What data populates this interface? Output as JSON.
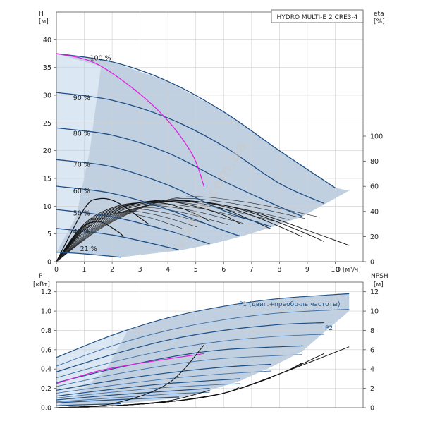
{
  "chart_data": [
    {
      "type": "line",
      "title": "HYDRO MULTI-E 2 CRE3-4",
      "watermark": "vikt21.com.ua",
      "x_axis": {
        "label": "Q [м³/ч]",
        "range": [
          0,
          11
        ],
        "ticks": [
          "0",
          "1",
          "2",
          "3",
          "4",
          "5",
          "6",
          "7",
          "8",
          "9",
          "10"
        ]
      },
      "y_left": {
        "label": "H",
        "unit": "[м]",
        "range": [
          0,
          45
        ],
        "ticks": [
          "0",
          "5",
          "10",
          "15",
          "20",
          "25",
          "30",
          "35",
          "40"
        ]
      },
      "y_right": {
        "label": "eta",
        "unit": "[%]",
        "range": [
          0,
          100
        ],
        "ticks": [
          "0",
          "20",
          "40",
          "60",
          "80",
          "100"
        ]
      },
      "colors": {
        "region_dark": "#b6c8db",
        "region_light": "#dbe7f3",
        "curve": "#1d4f86",
        "bep": "#e020e0",
        "eta": "#111111"
      },
      "speed_labels": [
        "100 %",
        "90 %",
        "80 %",
        "70 %",
        "60 %",
        "50 %",
        "40 %",
        "21 %"
      ],
      "head_curves": [
        {
          "speed": "100 %",
          "points": [
            [
              0,
              37.5
            ],
            [
              2,
              36
            ],
            [
              4,
              32.5
            ],
            [
              6,
              27
            ],
            [
              8,
              20
            ],
            [
              10,
              13.3
            ]
          ]
        },
        {
          "speed": "90 %",
          "points": [
            [
              0,
              30.5
            ],
            [
              2,
              29.1
            ],
            [
              4,
              25.9
            ],
            [
              6,
              20.8
            ],
            [
              8,
              14.1
            ],
            [
              9.6,
              10.5
            ]
          ]
        },
        {
          "speed": "80 %",
          "points": [
            [
              0,
              24.1
            ],
            [
              2,
              22.8
            ],
            [
              4,
              19.6
            ],
            [
              6,
              14.5
            ],
            [
              8,
              9.9
            ],
            [
              8.8,
              8.2
            ]
          ]
        },
        {
          "speed": "70 %",
          "points": [
            [
              0,
              18.4
            ],
            [
              2,
              17.1
            ],
            [
              4,
              13.8
            ],
            [
              6,
              9.2
            ],
            [
              7.7,
              6.3
            ]
          ]
        },
        {
          "speed": "60 %",
          "points": [
            [
              0,
              13.6
            ],
            [
              2,
              12.3
            ],
            [
              4,
              9.4
            ],
            [
              6,
              5.6
            ],
            [
              6.6,
              4.6
            ]
          ]
        },
        {
          "speed": "50 %",
          "points": [
            [
              0,
              9.4
            ],
            [
              2,
              8.1
            ],
            [
              4,
              5.6
            ],
            [
              5.5,
              3.2
            ]
          ]
        },
        {
          "speed": "40 %",
          "points": [
            [
              0,
              6.0
            ],
            [
              2,
              4.8
            ],
            [
              4,
              2.6
            ],
            [
              4.4,
              2.1
            ]
          ]
        },
        {
          "speed": "21 %",
          "points": [
            [
              0,
              1.7
            ],
            [
              1,
              1.4
            ],
            [
              2.3,
              0.8
            ]
          ]
        }
      ],
      "bep_curve": [
        [
          0,
          37.5
        ],
        [
          1.5,
          35.5
        ],
        [
          3.5,
          28
        ],
        [
          4.8,
          20
        ],
        [
          5.3,
          13.5
        ]
      ],
      "eta_curves": [
        {
          "points": [
            [
              0,
              0
            ],
            [
              1,
              25
            ],
            [
              2,
              38
            ],
            [
              3,
              45
            ],
            [
              4,
              48
            ],
            [
              5,
              48
            ],
            [
              6,
              45
            ],
            [
              7,
              40
            ],
            [
              8,
              33
            ],
            [
              9,
              25
            ],
            [
              10,
              17
            ],
            [
              10.5,
              13
            ]
          ]
        },
        {
          "points": [
            [
              0,
              0
            ],
            [
              1,
              26
            ],
            [
              2,
              39
            ],
            [
              3,
              46
            ],
            [
              4,
              48
            ],
            [
              5,
              48
            ],
            [
              6,
              45
            ],
            [
              7,
              39
            ],
            [
              8,
              31
            ],
            [
              9,
              22
            ],
            [
              9.6,
              16
            ]
          ]
        },
        {
          "points": [
            [
              0,
              0
            ],
            [
              1,
              27
            ],
            [
              2,
              40
            ],
            [
              3,
              47
            ],
            [
              4,
              49
            ],
            [
              5,
              48
            ],
            [
              6,
              44
            ],
            [
              7,
              37
            ],
            [
              8,
              28
            ],
            [
              8.8,
              20
            ]
          ]
        },
        {
          "points": [
            [
              0,
              0
            ],
            [
              1,
              28
            ],
            [
              2,
              41
            ],
            [
              3,
              47
            ],
            [
              4,
              49
            ],
            [
              5,
              47
            ],
            [
              6,
              42
            ],
            [
              7,
              33
            ],
            [
              7.7,
              26
            ]
          ]
        },
        {
          "points": [
            [
              0,
              0
            ],
            [
              1,
              29
            ],
            [
              2,
              42
            ],
            [
              3,
              47
            ],
            [
              4,
              48
            ],
            [
              5,
              44
            ],
            [
              6,
              37
            ],
            [
              6.6,
              30
            ]
          ]
        },
        {
          "points": [
            [
              0,
              0
            ],
            [
              1,
              30
            ],
            [
              2,
              43
            ],
            [
              3,
              47
            ],
            [
              4,
              46
            ],
            [
              5,
              38
            ],
            [
              5.5,
              32
            ]
          ]
        },
        {
          "points": [
            [
              0,
              0
            ],
            [
              1,
              42
            ],
            [
              1.5,
              50
            ],
            [
              2.2,
              47
            ],
            [
              3.3,
              30
            ]
          ]
        },
        {
          "points": [
            [
              0,
              0
            ],
            [
              0.8,
              25
            ],
            [
              1.5,
              32
            ],
            [
              2.2,
              24
            ],
            [
              2.4,
              20
            ]
          ]
        }
      ]
    },
    {
      "type": "line",
      "x_axis": {
        "range": [
          0,
          11
        ]
      },
      "y_left": {
        "label": "P",
        "unit": "[кВт]",
        "range": [
          0,
          1.3
        ],
        "ticks": [
          "0.0",
          "0.2",
          "0.4",
          "0.6",
          "0.8",
          "1.0",
          "1.2"
        ]
      },
      "y_right": {
        "label": "NPSH",
        "unit": "[м]",
        "range": [
          0,
          13
        ],
        "ticks": [
          "0",
          "2",
          "4",
          "6",
          "8",
          "10",
          "12"
        ]
      },
      "series_labels": {
        "p1": "P1 (двиг.+преобр-ль частоты)",
        "p2": "P2"
      },
      "p1_curves": [
        {
          "points": [
            [
              0,
              0.52
            ],
            [
              2,
              0.75
            ],
            [
              4,
              0.93
            ],
            [
              6,
              1.05
            ],
            [
              8,
              1.13
            ],
            [
              10.5,
              1.18
            ]
          ]
        },
        {
          "points": [
            [
              0,
              0.37
            ],
            [
              2,
              0.55
            ],
            [
              4,
              0.7
            ],
            [
              6,
              0.8
            ],
            [
              8,
              0.86
            ],
            [
              9.6,
              0.88
            ]
          ]
        },
        {
          "points": [
            [
              0,
              0.26
            ],
            [
              2,
              0.4
            ],
            [
              4,
              0.52
            ],
            [
              6,
              0.6
            ],
            [
              8.8,
              0.64
            ]
          ]
        },
        {
          "points": [
            [
              0,
              0.18
            ],
            [
              2,
              0.28
            ],
            [
              4,
              0.36
            ],
            [
              6,
              0.42
            ],
            [
              7.7,
              0.45
            ]
          ]
        },
        {
          "points": [
            [
              0,
              0.12
            ],
            [
              2,
              0.19
            ],
            [
              4,
              0.25
            ],
            [
              6.6,
              0.3
            ]
          ]
        },
        {
          "points": [
            [
              0,
              0.08
            ],
            [
              2,
              0.13
            ],
            [
              4,
              0.17
            ],
            [
              5.5,
              0.2
            ]
          ]
        },
        {
          "points": [
            [
              0,
              0.05
            ],
            [
              2,
              0.08
            ],
            [
              4.4,
              0.11
            ]
          ]
        },
        {
          "points": [
            [
              0,
              0.02
            ],
            [
              1,
              0.03
            ],
            [
              2.3,
              0.04
            ]
          ]
        }
      ],
      "p2_curves": [
        {
          "points": [
            [
              0,
              0.43
            ],
            [
              2,
              0.64
            ],
            [
              4,
              0.8
            ],
            [
              6,
              0.91
            ],
            [
              8,
              0.98
            ],
            [
              10.5,
              1.02
            ]
          ]
        },
        {
          "points": [
            [
              0,
              0.31
            ],
            [
              2,
              0.47
            ],
            [
              4,
              0.6
            ],
            [
              6,
              0.69
            ],
            [
              8,
              0.74
            ],
            [
              9.6,
              0.76
            ]
          ]
        },
        {
          "points": [
            [
              0,
              0.22
            ],
            [
              2,
              0.34
            ],
            [
              4,
              0.44
            ],
            [
              6,
              0.51
            ],
            [
              8.8,
              0.55
            ]
          ]
        },
        {
          "points": [
            [
              0,
              0.15
            ],
            [
              2,
              0.23
            ],
            [
              4,
              0.3
            ],
            [
              6,
              0.35
            ],
            [
              7.7,
              0.38
            ]
          ]
        },
        {
          "points": [
            [
              0,
              0.1
            ],
            [
              2,
              0.16
            ],
            [
              4,
              0.21
            ],
            [
              6.6,
              0.25
            ]
          ]
        },
        {
          "points": [
            [
              0,
              0.06
            ],
            [
              2,
              0.1
            ],
            [
              4,
              0.14
            ],
            [
              5.5,
              0.16
            ]
          ]
        }
      ],
      "bep_curve": [
        [
          0,
          0.25
        ],
        [
          1.5,
          0.38
        ],
        [
          3,
          0.46
        ],
        [
          5.3,
          0.56
        ]
      ],
      "npsh_curves": [
        {
          "points": [
            [
              0,
              0
            ],
            [
              2,
              0.2
            ],
            [
              4,
              0.6
            ],
            [
              6,
              1.5
            ],
            [
              8,
              3.5
            ],
            [
              10.5,
              6.3
            ]
          ]
        },
        {
          "points": [
            [
              0,
              0
            ],
            [
              2,
              0.2
            ],
            [
              4,
              0.6
            ],
            [
              6,
              1.5
            ],
            [
              8,
              3.5
            ],
            [
              9.6,
              5.6
            ]
          ]
        },
        {
          "points": [
            [
              0,
              0
            ],
            [
              2,
              0.2
            ],
            [
              4,
              0.6
            ],
            [
              6,
              1.5
            ],
            [
              8,
              3.5
            ],
            [
              8.8,
              4.6
            ]
          ]
        },
        {
          "points": [
            [
              0,
              0
            ],
            [
              2,
              0.2
            ],
            [
              4,
              0.6
            ],
            [
              6,
              1.5
            ],
            [
              7.7,
              3.1
            ]
          ]
        },
        {
          "points": [
            [
              0,
              0
            ],
            [
              2,
              0.2
            ],
            [
              4,
              0.6
            ],
            [
              6,
              1.5
            ],
            [
              6.6,
              2.2
            ]
          ]
        },
        {
          "points": [
            [
              0,
              0
            ],
            [
              2,
              0.2
            ],
            [
              4,
              0.7
            ],
            [
              5.5,
              1.8
            ]
          ]
        },
        {
          "points": [
            [
              0,
              0
            ],
            [
              2,
              0.4
            ],
            [
              4,
              2.5
            ],
            [
              5.3,
              6.5
            ]
          ]
        }
      ]
    }
  ]
}
